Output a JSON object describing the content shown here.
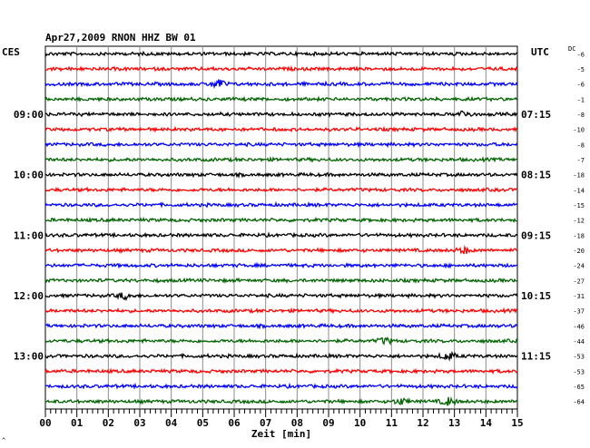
{
  "chart_data": {
    "type": "line",
    "title": "Apr27,2009   RNON HHZ BW 01",
    "left_zone": "CES",
    "right_zone": "UTC",
    "dc_label": "DC",
    "xlabel": "Zeit [min]",
    "x_ticks": [
      "00",
      "01",
      "02",
      "03",
      "04",
      "05",
      "06",
      "07",
      "08",
      "09",
      "10",
      "11",
      "12",
      "13",
      "14",
      "15"
    ],
    "xlim": [
      0,
      15
    ],
    "grid": true,
    "trace_colors": [
      "#000000",
      "#ff0000",
      "#0000ff",
      "#006400"
    ],
    "left_time_labels": [
      {
        "row": 4,
        "label": "09:00"
      },
      {
        "row": 8,
        "label": "10:00"
      },
      {
        "row": 12,
        "label": "11:00"
      },
      {
        "row": 16,
        "label": "12:00"
      },
      {
        "row": 20,
        "label": "13:00"
      }
    ],
    "right_time_labels": [
      {
        "row": 4,
        "label": "07:15"
      },
      {
        "row": 8,
        "label": "08:15"
      },
      {
        "row": 12,
        "label": "09:15"
      },
      {
        "row": 16,
        "label": "10:15"
      },
      {
        "row": 20,
        "label": "11:15"
      }
    ],
    "dc_offsets": [
      "-6",
      "-5",
      "-6",
      "-1",
      "-8",
      "-10",
      "-8",
      "-7",
      "-18",
      "-14",
      "-15",
      "-12",
      "-18",
      "-20",
      "-24",
      "-27",
      "-31",
      "-37",
      "-46",
      "-44",
      "-53",
      "-53",
      "-65",
      "-64"
    ],
    "events": [
      {
        "row": 2,
        "minute": 5.5,
        "amplitude": 5
      },
      {
        "row": 4,
        "minute": 13.3,
        "amplitude": 3
      },
      {
        "row": 13,
        "minute": 13.3,
        "amplitude": 3
      },
      {
        "row": 16,
        "minute": 2.5,
        "amplitude": 3
      },
      {
        "row": 19,
        "minute": 10.8,
        "amplitude": 3
      },
      {
        "row": 20,
        "minute": 12.8,
        "amplitude": 4
      },
      {
        "row": 23,
        "minute": 11.3,
        "amplitude": 3
      },
      {
        "row": 23,
        "minute": 12.8,
        "amplitude": 4
      }
    ],
    "footer_mark": "^"
  }
}
